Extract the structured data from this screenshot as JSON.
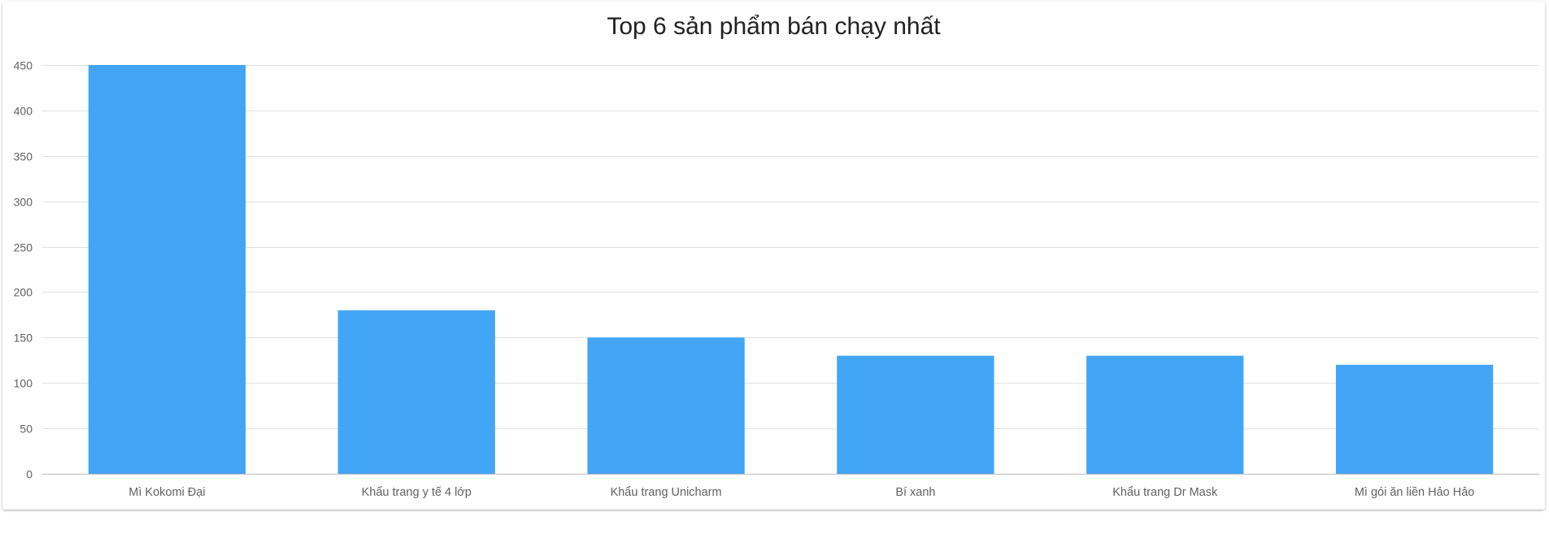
{
  "chart_data": {
    "type": "bar",
    "title": "Top 6 sản phẩm bán chạy nhất",
    "xlabel": "",
    "ylabel": "",
    "categories": [
      "Mì Kokomi Đại",
      "Khẩu trang y tế 4 lớp",
      "Khẩu trang Unicharm",
      "Bí xanh",
      "Khẩu trang Dr Mask",
      "Mì gói ăn liền Hảo Hảo"
    ],
    "values": [
      450,
      180,
      150,
      130,
      130,
      120
    ],
    "ylim": [
      0,
      450
    ],
    "yticks": [
      0,
      50,
      100,
      150,
      200,
      250,
      300,
      350,
      400,
      450
    ],
    "grid": true,
    "legend": "none",
    "bar_color": "#42a5f5",
    "grid_color": "#e0e0e0",
    "axis_color": "#bdbdbd"
  }
}
